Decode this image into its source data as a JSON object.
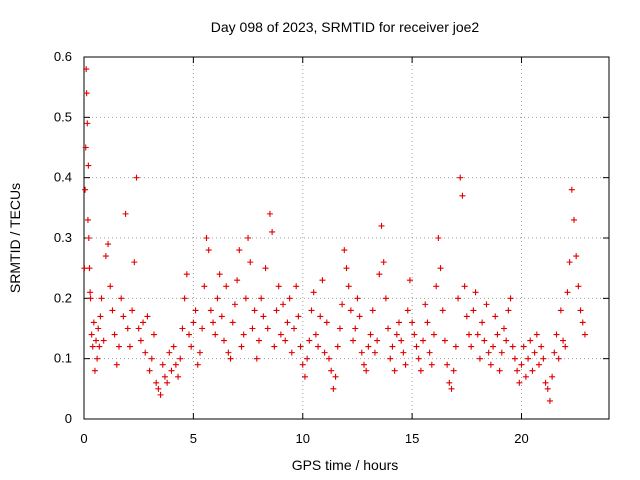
{
  "chart_data": {
    "type": "scatter",
    "title": "Day 098 of 2023, SRMTID for receiver joe2",
    "xlabel": "GPS time / hours",
    "ylabel": "SRMTID / TECUs",
    "xlim": [
      0,
      24
    ],
    "ylim": [
      0,
      0.6
    ],
    "xticks": [
      0,
      5,
      10,
      15,
      20
    ],
    "xtick_labels": [
      "0",
      "5",
      "10",
      "15",
      "20"
    ],
    "yticks": [
      0,
      0.1,
      0.2,
      0.3,
      0.4,
      0.5,
      0.6
    ],
    "ytick_labels": [
      "0",
      "0.1",
      "0.2",
      "0.3",
      "0.4",
      "0.5",
      "0.6"
    ],
    "grid": true,
    "marker": "+",
    "marker_color": "#e00000",
    "series": [
      {
        "name": "SRMTID",
        "x": [
          0.02,
          0.05,
          0.08,
          0.1,
          0.12,
          0.15,
          0.18,
          0.2,
          0.22,
          0.25,
          0.28,
          0.3,
          0.35,
          0.4,
          0.45,
          0.5,
          0.55,
          0.6,
          0.65,
          0.7,
          0.75,
          0.8,
          0.9,
          1.0,
          1.1,
          1.2,
          1.3,
          1.4,
          1.5,
          1.6,
          1.7,
          1.8,
          1.9,
          2.0,
          2.1,
          2.2,
          2.3,
          2.4,
          2.5,
          2.6,
          2.7,
          2.8,
          2.9,
          3.0,
          3.1,
          3.2,
          3.3,
          3.4,
          3.5,
          3.6,
          3.7,
          3.8,
          3.9,
          4.0,
          4.1,
          4.2,
          4.3,
          4.4,
          4.5,
          4.6,
          4.7,
          4.8,
          4.9,
          5.0,
          5.1,
          5.2,
          5.3,
          5.4,
          5.5,
          5.6,
          5.7,
          5.8,
          5.9,
          6.0,
          6.1,
          6.2,
          6.3,
          6.4,
          6.5,
          6.6,
          6.7,
          6.8,
          6.9,
          7.0,
          7.1,
          7.2,
          7.3,
          7.4,
          7.5,
          7.6,
          7.7,
          7.8,
          7.9,
          8.0,
          8.1,
          8.2,
          8.3,
          8.4,
          8.5,
          8.6,
          8.7,
          8.8,
          8.9,
          9.0,
          9.1,
          9.2,
          9.3,
          9.4,
          9.5,
          9.6,
          9.7,
          9.8,
          9.9,
          10.0,
          10.1,
          10.2,
          10.3,
          10.4,
          10.5,
          10.6,
          10.7,
          10.8,
          10.9,
          11.0,
          11.1,
          11.2,
          11.3,
          11.4,
          11.5,
          11.6,
          11.7,
          11.8,
          11.9,
          12.0,
          12.1,
          12.2,
          12.3,
          12.4,
          12.5,
          12.6,
          12.7,
          12.8,
          12.9,
          13.0,
          13.1,
          13.2,
          13.3,
          13.4,
          13.5,
          13.6,
          13.7,
          13.8,
          13.9,
          14.0,
          14.1,
          14.2,
          14.3,
          14.4,
          14.5,
          14.6,
          14.7,
          14.8,
          14.9,
          15.0,
          15.1,
          15.2,
          15.3,
          15.4,
          15.5,
          15.6,
          15.7,
          15.8,
          15.9,
          16.0,
          16.1,
          16.2,
          16.3,
          16.4,
          16.5,
          16.6,
          16.7,
          16.8,
          16.9,
          17.0,
          17.1,
          17.2,
          17.3,
          17.4,
          17.5,
          17.6,
          17.7,
          17.8,
          17.9,
          18.0,
          18.1,
          18.2,
          18.3,
          18.4,
          18.5,
          18.6,
          18.7,
          18.8,
          18.9,
          19.0,
          19.1,
          19.2,
          19.3,
          19.4,
          19.5,
          19.6,
          19.7,
          19.8,
          19.9,
          20.0,
          20.1,
          20.2,
          20.3,
          20.4,
          20.5,
          20.6,
          20.7,
          20.8,
          20.9,
          21.0,
          21.1,
          21.2,
          21.3,
          21.4,
          21.5,
          21.6,
          21.7,
          21.8,
          21.9,
          22.0,
          22.1,
          22.2,
          22.3,
          22.4,
          22.5,
          22.6,
          22.7,
          22.8,
          22.9
        ],
        "y": [
          0.25,
          0.38,
          0.45,
          0.58,
          0.54,
          0.49,
          0.33,
          0.42,
          0.3,
          0.25,
          0.21,
          0.2,
          0.14,
          0.12,
          0.16,
          0.08,
          0.13,
          0.1,
          0.15,
          0.12,
          0.17,
          0.2,
          0.13,
          0.27,
          0.29,
          0.22,
          0.18,
          0.14,
          0.09,
          0.12,
          0.2,
          0.17,
          0.34,
          0.15,
          0.12,
          0.18,
          0.26,
          0.4,
          0.15,
          0.13,
          0.16,
          0.11,
          0.17,
          0.08,
          0.1,
          0.14,
          0.06,
          0.05,
          0.04,
          0.09,
          0.07,
          0.06,
          0.11,
          0.08,
          0.12,
          0.09,
          0.07,
          0.1,
          0.15,
          0.2,
          0.24,
          0.14,
          0.12,
          0.16,
          0.18,
          0.09,
          0.11,
          0.15,
          0.22,
          0.3,
          0.28,
          0.18,
          0.16,
          0.14,
          0.2,
          0.24,
          0.17,
          0.13,
          0.22,
          0.11,
          0.1,
          0.16,
          0.19,
          0.23,
          0.28,
          0.12,
          0.14,
          0.2,
          0.3,
          0.26,
          0.15,
          0.18,
          0.1,
          0.13,
          0.2,
          0.17,
          0.25,
          0.15,
          0.34,
          0.31,
          0.12,
          0.18,
          0.22,
          0.14,
          0.19,
          0.13,
          0.16,
          0.2,
          0.11,
          0.15,
          0.22,
          0.17,
          0.12,
          0.09,
          0.07,
          0.1,
          0.13,
          0.18,
          0.21,
          0.14,
          0.12,
          0.17,
          0.23,
          0.11,
          0.16,
          0.1,
          0.08,
          0.05,
          0.07,
          0.12,
          0.15,
          0.19,
          0.28,
          0.25,
          0.22,
          0.18,
          0.13,
          0.15,
          0.2,
          0.17,
          0.11,
          0.09,
          0.08,
          0.12,
          0.14,
          0.18,
          0.11,
          0.13,
          0.24,
          0.32,
          0.26,
          0.2,
          0.15,
          0.1,
          0.12,
          0.08,
          0.14,
          0.16,
          0.13,
          0.11,
          0.09,
          0.18,
          0.23,
          0.16,
          0.14,
          0.12,
          0.1,
          0.08,
          0.13,
          0.19,
          0.16,
          0.11,
          0.09,
          0.14,
          0.22,
          0.3,
          0.25,
          0.18,
          0.13,
          0.09,
          0.06,
          0.05,
          0.08,
          0.12,
          0.2,
          0.4,
          0.37,
          0.22,
          0.17,
          0.14,
          0.12,
          0.18,
          0.21,
          0.14,
          0.1,
          0.16,
          0.13,
          0.19,
          0.11,
          0.09,
          0.12,
          0.17,
          0.14,
          0.08,
          0.11,
          0.15,
          0.13,
          0.18,
          0.2,
          0.12,
          0.1,
          0.08,
          0.06,
          0.09,
          0.12,
          0.07,
          0.1,
          0.13,
          0.08,
          0.11,
          0.14,
          0.09,
          0.12,
          0.1,
          0.06,
          0.05,
          0.03,
          0.07,
          0.11,
          0.14,
          0.1,
          0.18,
          0.13,
          0.12,
          0.21,
          0.26,
          0.38,
          0.33,
          0.27,
          0.22,
          0.18,
          0.16,
          0.14
        ]
      }
    ]
  }
}
